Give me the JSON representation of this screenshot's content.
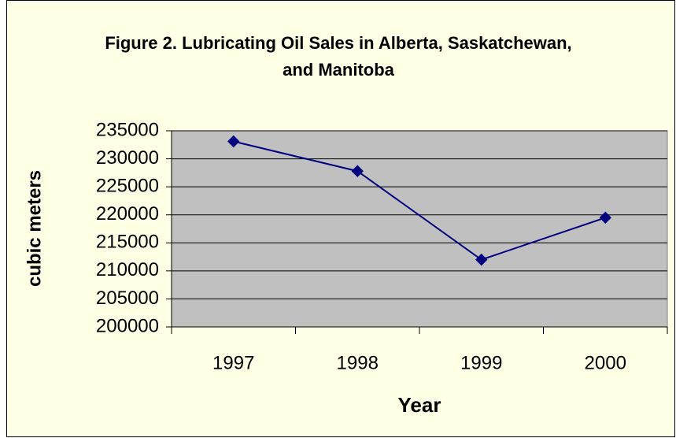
{
  "chart_data": {
    "type": "line",
    "title": "Figure 2. Lubricating Oil Sales in Alberta, Saskatchewan, and Manitoba",
    "x_label": "Year",
    "y_label": "cubic meters",
    "categories": [
      "1997",
      "1998",
      "1999",
      "2000"
    ],
    "series": [
      {
        "name": "Lubricating Oil Sales",
        "color": "#000080",
        "values": [
          233100,
          227800,
          212000,
          219500
        ]
      }
    ],
    "ylim": [
      200000,
      235000
    ],
    "yticks": [
      200000,
      205000,
      210000,
      215000,
      220000,
      225000,
      230000,
      235000
    ],
    "grid": true
  }
}
